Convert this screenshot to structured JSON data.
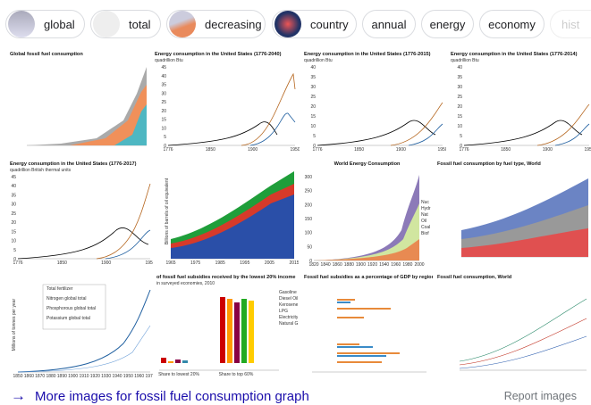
{
  "chips": [
    "global",
    "total",
    "decreasing",
    "country",
    "annual",
    "energy",
    "economy",
    "hist"
  ],
  "results": [
    {
      "title": "Global fossil fuel consumption"
    },
    {
      "title": "Energy consumption in the United States (1776-2040)",
      "subtitle": "quadrillion Btu",
      "yticks": [
        "0",
        "5",
        "10",
        "15",
        "20",
        "25",
        "30",
        "35",
        "40",
        "45"
      ],
      "xticks": [
        "1776",
        "1850",
        "1900",
        "1950"
      ]
    },
    {
      "title": "Energy consumption in the United States (1776-2015)",
      "subtitle": "quadrillion Btu",
      "yticks": [
        "0",
        "5",
        "10",
        "15",
        "20",
        "25",
        "30",
        "35",
        "40"
      ],
      "xticks": [
        "1776",
        "1850",
        "1900",
        "1950"
      ]
    },
    {
      "title": "Energy consumption in the United States (1776-2014)",
      "subtitle": "quadrillion Btu",
      "yticks": [
        "0",
        "5",
        "10",
        "15",
        "20",
        "25",
        "30",
        "35",
        "40"
      ],
      "xticks": [
        "1776",
        "1850",
        "1900",
        "1950"
      ]
    },
    {
      "title": "Energy consumption in the United States (1776-2017)",
      "subtitle": "quadrillion British thermal units",
      "yticks": [
        "0",
        "5",
        "10",
        "15",
        "20",
        "25",
        "30",
        "35",
        "40",
        "45"
      ],
      "xticks": [
        "1776",
        "1850",
        "1900",
        "1950"
      ]
    },
    {
      "ylabel": "Billions of barrels of oil equivalent",
      "xticks": [
        "1965",
        "1975",
        "1985",
        "1995",
        "2005",
        "2015"
      ]
    },
    {
      "title": "World Energy Consumption",
      "yticks": [
        "0",
        "50",
        "100",
        "150",
        "200",
        "250",
        "300"
      ],
      "xticks": [
        "1820",
        "1840",
        "1860",
        "1880",
        "1900",
        "1920",
        "1940",
        "1960",
        "1980",
        "2000"
      ],
      "legend": [
        "Nuc",
        "Hydr",
        "Nat",
        "Oil",
        "Coal",
        "Biof"
      ]
    },
    {
      "title": "Fossil fuel consumption by fuel type, World"
    },
    {
      "ylabel": "Millions of tonnes per year",
      "legend": [
        "Total fertilizer",
        "Nitrogen global total",
        "Phosphorous global total",
        "Potassium global total"
      ],
      "xticks": [
        "1850",
        "1860",
        "1870",
        "1880",
        "1890",
        "1900",
        "1910",
        "1920",
        "1930",
        "1940",
        "1950",
        "1960",
        "1970"
      ]
    },
    {
      "title": "of fossil fuel subsidies received by the lowest 20% income",
      "subtitle": "in surveyed economies, 2010",
      "xticks": [
        "Share to lowest 20%",
        "Share to top 60%"
      ],
      "legend": [
        "Gasoline",
        "Diesel Oil",
        "Kerosene",
        "LPG",
        "Electricity",
        "Natural Ga"
      ]
    },
    {
      "title": "Fossil fuel subsidies as a percentage of GDP by region"
    },
    {
      "title": "Fossil fuel consumption, World"
    }
  ],
  "footer": {
    "link": "More images for fossil fuel consumption graph",
    "report": "Report images"
  }
}
